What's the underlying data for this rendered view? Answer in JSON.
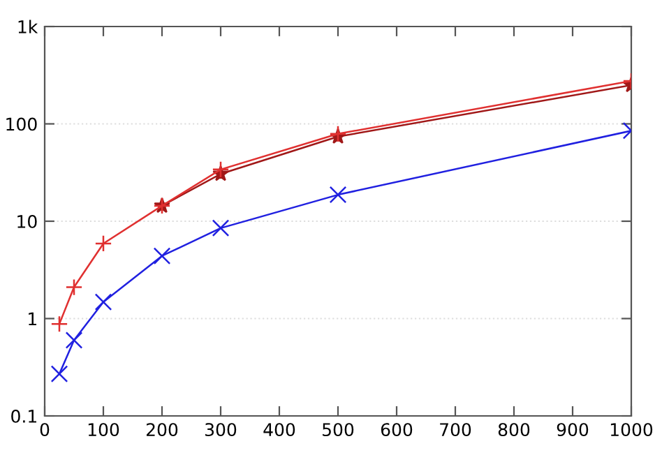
{
  "chart_data": {
    "type": "line",
    "log": "y",
    "grid": "y",
    "line_style": "solid",
    "xlim": [
      0,
      1000
    ],
    "xticks": [
      0,
      100,
      200,
      300,
      400,
      500,
      600,
      700,
      800,
      900,
      1000
    ],
    "ylim": [
      0.1,
      1000
    ],
    "yticks": [
      0.1,
      1,
      10,
      100,
      {
        "value": 1000,
        "label": "1k"
      }
    ],
    "series": [
      {
        "color": "#e03030",
        "marker": "plus",
        "x": [
          25,
          50,
          100,
          200,
          300,
          500,
          1000
        ],
        "values": [
          0.88,
          2.1,
          5.9,
          14.4,
          34,
          79,
          276
        ]
      },
      {
        "color": "#a01818",
        "marker": "star",
        "x": [
          200,
          300,
          500,
          1000
        ],
        "values": [
          14.4,
          30.6,
          74,
          250
        ]
      },
      {
        "color": "#2020e0",
        "marker": "cross",
        "x": [
          25,
          50,
          100,
          200,
          300,
          500,
          1000
        ],
        "values": [
          0.27,
          0.6,
          1.48,
          4.4,
          8.5,
          18.7,
          85
        ]
      }
    ]
  }
}
